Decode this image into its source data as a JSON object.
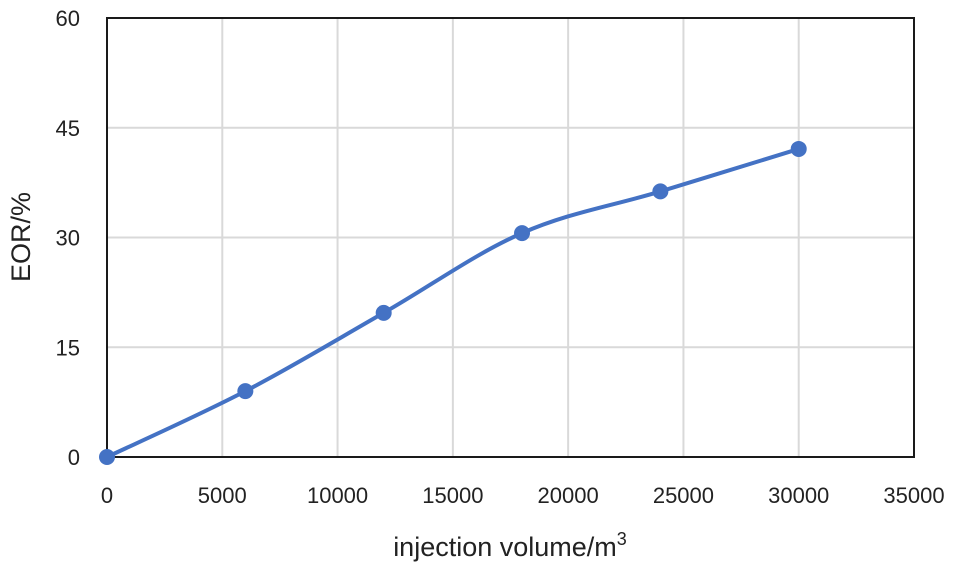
{
  "chart_data": {
    "type": "line",
    "xlabel": "injection volume/m",
    "xlabel_sup": "3",
    "ylabel": "EOR/%",
    "xlim": [
      0,
      35000
    ],
    "ylim": [
      0,
      60
    ],
    "xticks": [
      0,
      5000,
      10000,
      15000,
      20000,
      25000,
      30000,
      35000
    ],
    "yticks": [
      0,
      15,
      30,
      45,
      60
    ],
    "grid": true,
    "smooth": true,
    "color": "#4472c4",
    "series": [
      {
        "x": [
          0,
          6000,
          12000,
          18000,
          24000,
          30000
        ],
        "y": [
          0,
          9.0,
          19.7,
          30.6,
          36.3,
          42.1
        ]
      }
    ]
  }
}
